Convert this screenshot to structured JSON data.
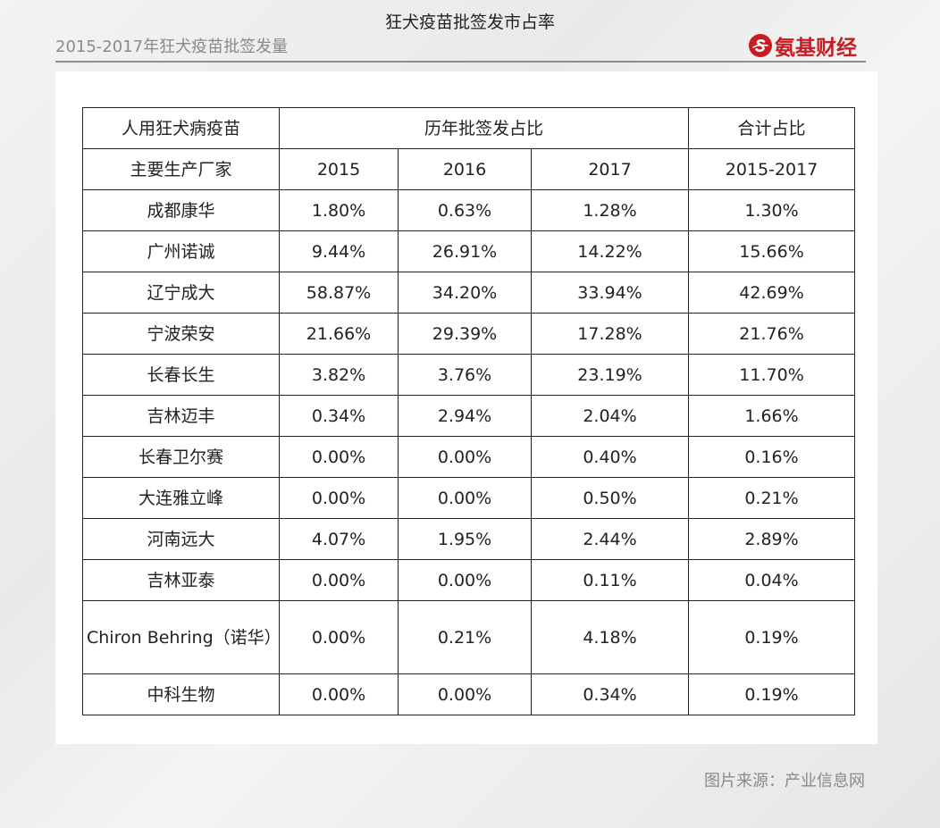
{
  "header": {
    "title": "2015-2017年狂犬疫苗批签发量",
    "brand_name": "氨基财经",
    "brand_color": "#c61d23"
  },
  "table": {
    "title": "狂犬疫苗批签发市占率",
    "header_row1": {
      "col1": "人用狂犬病疫苗",
      "col2": "历年批签发占比",
      "col3": "合计占比"
    },
    "header_row2": [
      "主要生产厂家",
      "2015",
      "2016",
      "2017",
      "2015-2017"
    ],
    "rows": [
      [
        "成都康华",
        "1.80%",
        "0.63%",
        "1.28%",
        "1.30%"
      ],
      [
        "广州诺诚",
        "9.44%",
        "26.91%",
        "14.22%",
        "15.66%"
      ],
      [
        "辽宁成大",
        "58.87%",
        "34.20%",
        "33.94%",
        "42.69%"
      ],
      [
        "宁波荣安",
        "21.66%",
        "29.39%",
        "17.28%",
        "21.76%"
      ],
      [
        "长春长生",
        "3.82%",
        "3.76%",
        "23.19%",
        "11.70%"
      ],
      [
        "吉林迈丰",
        "0.34%",
        "2.94%",
        "2.04%",
        "1.66%"
      ],
      [
        "长春卫尔赛",
        "0.00%",
        "0.00%",
        "0.40%",
        "0.16%"
      ],
      [
        "大连雅立峰",
        "0.00%",
        "0.00%",
        "0.50%",
        "0.21%"
      ],
      [
        "河南远大",
        "4.07%",
        "1.95%",
        "2.44%",
        "2.89%"
      ],
      [
        "吉林亚泰",
        "0.00%",
        "0.00%",
        "0.11%",
        "0.04%"
      ],
      [
        "Chiron Behring（诺华）",
        "0.00%",
        "0.21%",
        "4.18%",
        "0.19%"
      ],
      [
        "中科生物",
        "0.00%",
        "0.00%",
        "0.34%",
        "0.19%"
      ]
    ]
  },
  "footer": {
    "source": "图片来源：产业信息网"
  }
}
